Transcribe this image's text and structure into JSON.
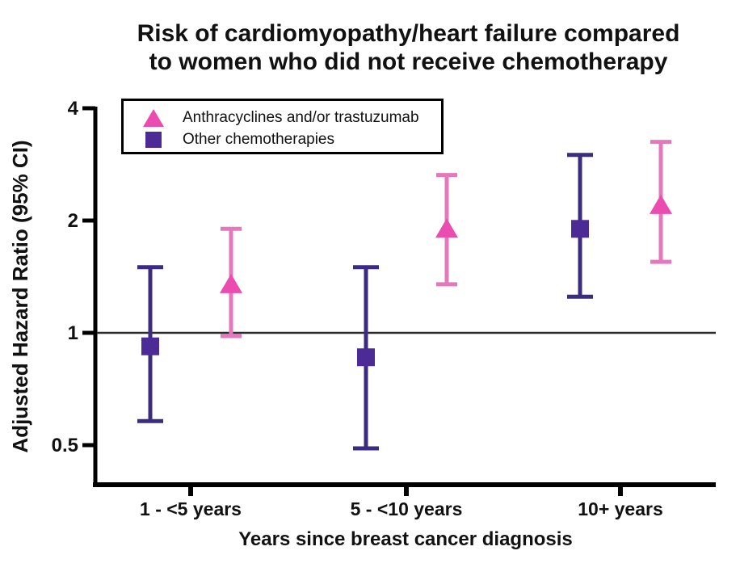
{
  "header": {
    "title_line1": "Risk of cardiomyopathy/heart failure compared",
    "title_line2": "to women who did not receive chemotherapy"
  },
  "chart_data": {
    "type": "scatter",
    "subtype": "forest-plot-hazard-ratios",
    "title": "Risk of cardiomyopathy/heart failure compared to women who did not receive chemotherapy",
    "xlabel": "Years since breast cancer diagnosis",
    "ylabel": "Adjusted Hazard Ratio (95% CI)",
    "yscale": "log2",
    "ylim": [
      0.39,
      4
    ],
    "yticks": [
      4,
      2,
      1,
      0.5
    ],
    "reference_line": 1,
    "grid": "off",
    "legend_position": "top-left",
    "categories": [
      "1 - <5 years",
      "5 - <10 years",
      "10+ years"
    ],
    "series": [
      {
        "name": "Anthracyclines and/or trastuzumab",
        "marker": "triangle",
        "color": "#ea4daf",
        "line_color": "#e578bc",
        "x_offset": 50,
        "cap_half": 13,
        "points": [
          {
            "hr": 1.35,
            "lo": 0.98,
            "hi": 1.9
          },
          {
            "hr": 1.9,
            "lo": 1.35,
            "hi": 2.65
          },
          {
            "hr": 2.2,
            "lo": 1.55,
            "hi": 3.25
          }
        ]
      },
      {
        "name": "Other chemotherapies",
        "marker": "square",
        "color": "#4d2b96",
        "line_color": "#3c2c80",
        "x_offset": -50,
        "cap_half": 16,
        "points": [
          {
            "hr": 0.92,
            "lo": 0.58,
            "hi": 1.5
          },
          {
            "hr": 0.86,
            "lo": 0.49,
            "hi": 1.5
          },
          {
            "hr": 1.9,
            "lo": 1.25,
            "hi": 3.0
          }
        ]
      }
    ]
  }
}
